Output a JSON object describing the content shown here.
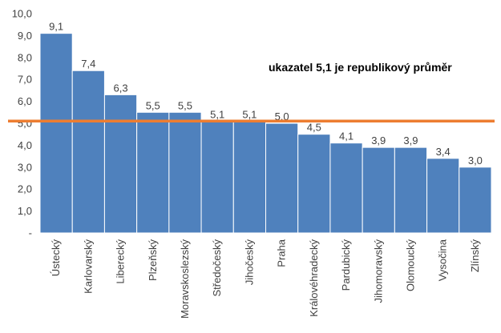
{
  "chart_data": {
    "type": "bar",
    "title": "",
    "xlabel": "",
    "ylabel": "",
    "categories": [
      "Ústecký",
      "Karlovarský",
      "Liberecký",
      "Plzeňský",
      "Moravskoslezský",
      "Středočeský",
      "Jihočeský",
      "Praha",
      "Královéhradecký",
      "Pardubický",
      "Jihomoravský",
      "Olomoucký",
      "Vysočina",
      "Zlínský"
    ],
    "values": [
      9.1,
      7.4,
      6.3,
      5.5,
      5.5,
      5.1,
      5.1,
      5.0,
      4.5,
      4.1,
      3.9,
      3.9,
      3.4,
      3.0
    ],
    "value_labels": [
      "9,1",
      "7,4",
      "6,3",
      "5,5",
      "5,5",
      "5,1",
      "5,1",
      "5,0",
      "4,5",
      "4,1",
      "3,9",
      "3,9",
      "3,4",
      "3,0"
    ],
    "ylim": [
      0,
      10
    ],
    "y_ticks": [
      0,
      1,
      2,
      3,
      4,
      5,
      6,
      7,
      8,
      9,
      10
    ],
    "y_tick_labels": [
      "-",
      "1,0",
      "2,0",
      "3,0",
      "4,0",
      "5,0",
      "6,0",
      "7,0",
      "8,0",
      "9,0",
      "10,0"
    ],
    "grid": false,
    "reference_line": {
      "value": 5.1,
      "color": "#ed7d31"
    },
    "annotation": "ukazatel 5,1 je republikový průměr",
    "bar_color": "#4f81bd",
    "bar_edge_color": "#ffffff"
  }
}
